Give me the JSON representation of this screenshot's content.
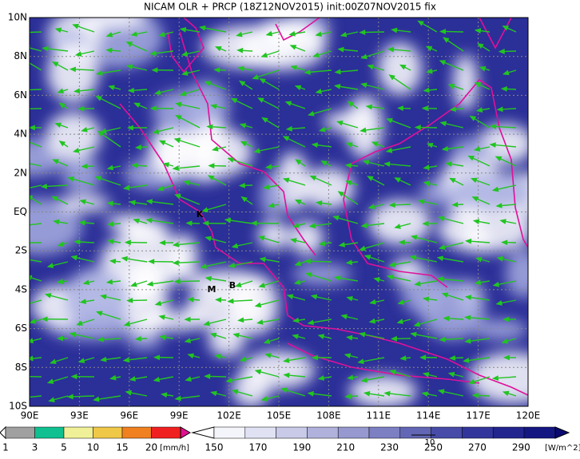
{
  "title": "NICAM OLR + PRCP (18Z12NOV2015) init:00Z07NOV2015 fix",
  "map": {
    "lat_labels": [
      "10N",
      "8N",
      "6N",
      "4N",
      "2N",
      "EQ",
      "2S",
      "4S",
      "6S",
      "8S",
      "10S"
    ],
    "lon_labels": [
      "90E",
      "93E",
      "96E",
      "99E",
      "102E",
      "105E",
      "108E",
      "111E",
      "114E",
      "117E",
      "120E"
    ],
    "places": [
      {
        "label": "K"
      },
      {
        "label": "M"
      },
      {
        "label": "B"
      }
    ],
    "vector_reference": "10"
  },
  "precip_colorbar": {
    "labels": [
      "1",
      "3",
      "5",
      "10",
      "15",
      "20"
    ],
    "unit": "[mm/h]"
  },
  "olr_colorbar": {
    "labels": [
      "150",
      "170",
      "190",
      "210",
      "230",
      "250",
      "270",
      "290"
    ],
    "unit": "[W/m^2]"
  }
}
